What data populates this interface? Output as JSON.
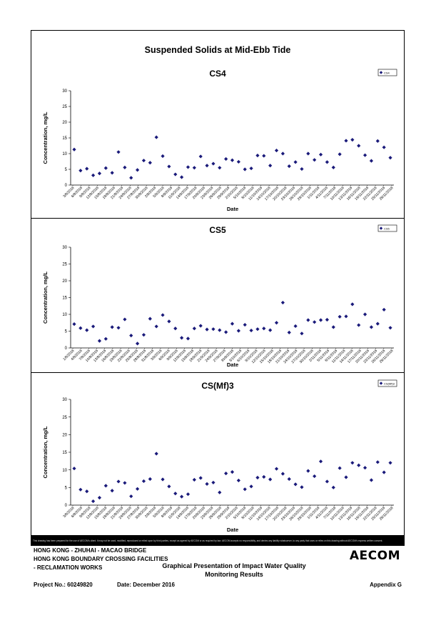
{
  "page_title": "Suspended Solids at Mid-Ebb Tide",
  "disclaimer": "This drawing has been prepared for the use of AECOM's client. It may not be used, modified, reproduced or relied upon by third parties, except as agreed by AECOM or as required by law. AECOM accepts no responsibility, and denies any liability whatsoever, to any party that uses or relies on this drawing without AECOM's express written consent.",
  "footer": {
    "line1": "HONG KONG - ZHUHAI - MACAO BRIDGE",
    "line2": "HONG KONG BOUNDARY CROSSING FACILITIES",
    "line3": "- RECLAMATION WORKS",
    "title_line1": "Graphical Presentation of Impact Water Quality",
    "title_line2": "Monitoring Results",
    "project": "Project No.: 60249820",
    "date": "Date: December 2016",
    "appendix": "Appendix G",
    "logo": "AECOM"
  },
  "colors": {
    "marker": "#1a1a7a",
    "axis": "#000000",
    "grid": "none"
  },
  "chart_data": [
    {
      "type": "scatter",
      "title": "CS4",
      "xlabel": "Date",
      "ylabel": "Concentration, mg/L",
      "ylim": [
        0,
        30
      ],
      "yticks": [
        0,
        5,
        10,
        15,
        20,
        25,
        30
      ],
      "legend": "CS4",
      "legend_position": "top-right",
      "marker": "diamond",
      "xtick_labels": [
        "3/8/2016",
        "6/8/2016",
        "9/8/2016",
        "12/8/2016",
        "15/8/2016",
        "18/8/2016",
        "21/8/2016",
        "24/8/2016",
        "27/8/2016",
        "30/8/2016",
        "2/9/2016",
        "5/9/2016",
        "8/9/2016",
        "11/9/2016",
        "14/9/2016",
        "17/9/2016",
        "20/9/2016",
        "23/9/2016",
        "26/9/2016",
        "29/9/2016",
        "2/10/2016",
        "5/10/2016",
        "8/10/2016",
        "11/10/2016",
        "14/10/2016",
        "17/10/2016",
        "20/10/2016",
        "23/10/2016",
        "26/10/2016",
        "29/10/2016",
        "1/11/2016",
        "4/11/2016",
        "7/11/2016",
        "10/11/2016",
        "13/11/2016",
        "16/11/2016",
        "19/11/2016",
        "22/11/2016",
        "25/11/2016",
        "28/11/2016"
      ],
      "values": [
        11.3,
        4.6,
        5.2,
        3.1,
        3.7,
        5.4,
        3.9,
        10.5,
        5.6,
        2.3,
        4.8,
        7.8,
        7.1,
        15.2,
        9.2,
        5.9,
        3.4,
        2.5,
        5.7,
        5.5,
        9.1,
        6.2,
        6.8,
        5.5,
        8.3,
        7.9,
        7.4,
        5.0,
        5.3,
        9.4,
        9.3,
        6.2,
        11.0,
        10.0,
        6.0,
        7.3,
        5.1,
        10.0,
        8.0,
        9.7,
        7.3,
        5.6,
        9.8,
        14.1,
        14.4,
        12.5,
        9.5,
        7.7,
        14.0,
        12.0,
        8.7
      ]
    },
    {
      "type": "scatter",
      "title": "CS5",
      "xlabel": "Date",
      "ylabel": "Concentration, mg/L",
      "ylim": [
        0,
        30
      ],
      "yticks": [
        0,
        5,
        10,
        15,
        20,
        25,
        30
      ],
      "legend": "CS5",
      "legend_position": "top-right",
      "marker": "diamond",
      "xtick_labels": [
        "1/8/2016",
        "4/8/2016",
        "7/8/2016",
        "10/8/2016",
        "13/8/2016",
        "16/8/2016",
        "19/8/2016",
        "22/8/2016",
        "25/8/2016",
        "28/8/2016",
        "31/8/2016",
        "3/9/2016",
        "6/9/2016",
        "9/9/2016",
        "12/9/2016",
        "15/9/2016",
        "18/9/2016",
        "21/9/2016",
        "24/9/2016",
        "27/9/2016",
        "30/9/2016",
        "3/10/2016",
        "6/10/2016",
        "9/10/2016",
        "12/10/2016",
        "15/10/2016",
        "18/10/2016",
        "21/10/2016",
        "24/10/2016",
        "27/10/2016",
        "30/10/2016",
        "2/11/2016",
        "5/11/2016",
        "8/11/2016",
        "11/11/2016",
        "14/11/2016",
        "17/11/2016",
        "20/11/2016",
        "23/11/2016",
        "26/11/2016",
        "29/11/2016"
      ],
      "values": [
        7.1,
        5.9,
        5.3,
        6.4,
        2.1,
        2.7,
        6.2,
        6.0,
        8.5,
        3.7,
        1.3,
        3.9,
        8.7,
        6.4,
        9.8,
        7.9,
        5.8,
        3.0,
        2.8,
        5.8,
        6.6,
        5.5,
        5.6,
        5.3,
        4.7,
        7.2,
        5.1,
        6.9,
        5.2,
        5.6,
        5.8,
        5.3,
        7.5,
        13.5,
        4.6,
        6.5,
        4.3,
        8.3,
        7.7,
        8.3,
        8.4,
        6.2,
        9.3,
        9.4,
        13.0,
        6.8,
        10.0,
        6.2,
        7.2,
        11.4,
        6.0
      ]
    },
    {
      "type": "scatter",
      "title": "CS(Mf)3",
      "xlabel": "Date",
      "ylabel": "Concentration, mg/L",
      "ylim": [
        0,
        30
      ],
      "yticks": [
        0,
        5,
        10,
        15,
        20,
        25,
        30
      ],
      "legend": "CS(Mf)3",
      "legend_position": "top-right",
      "marker": "diamond",
      "xtick_labels": [
        "3/8/2016",
        "6/8/2016",
        "9/8/2016",
        "12/8/2016",
        "15/8/2016",
        "18/8/2016",
        "21/8/2016",
        "24/8/2016",
        "27/8/2016",
        "30/8/2016",
        "2/9/2016",
        "5/9/2016",
        "8/9/2016",
        "11/9/2016",
        "14/9/2016",
        "17/9/2016",
        "20/9/2016",
        "23/9/2016",
        "26/9/2016",
        "29/9/2016",
        "2/10/2016",
        "5/10/2016",
        "8/10/2016",
        "11/10/2016",
        "14/10/2016",
        "17/10/2016",
        "20/10/2016",
        "23/10/2016",
        "26/10/2016",
        "29/10/2016",
        "1/11/2016",
        "4/11/2016",
        "7/11/2016",
        "10/11/2016",
        "13/11/2016",
        "16/11/2016",
        "19/11/2016",
        "22/11/2016",
        "25/11/2016",
        "28/11/2016"
      ],
      "values": [
        10.4,
        4.4,
        3.9,
        1.1,
        2.1,
        5.5,
        4.1,
        6.7,
        6.3,
        2.5,
        4.6,
        6.8,
        7.4,
        14.6,
        7.3,
        5.3,
        3.3,
        2.4,
        3.1,
        7.2,
        7.7,
        6.0,
        6.4,
        3.6,
        9.0,
        9.4,
        7.0,
        4.5,
        5.3,
        7.8,
        8.0,
        7.3,
        10.3,
        8.9,
        7.4,
        5.9,
        5.1,
        9.7,
        8.2,
        12.4,
        6.7,
        5.0,
        10.5,
        7.9,
        12.0,
        11.3,
        10.6,
        7.1,
        12.2,
        9.3,
        12.0
      ]
    }
  ]
}
